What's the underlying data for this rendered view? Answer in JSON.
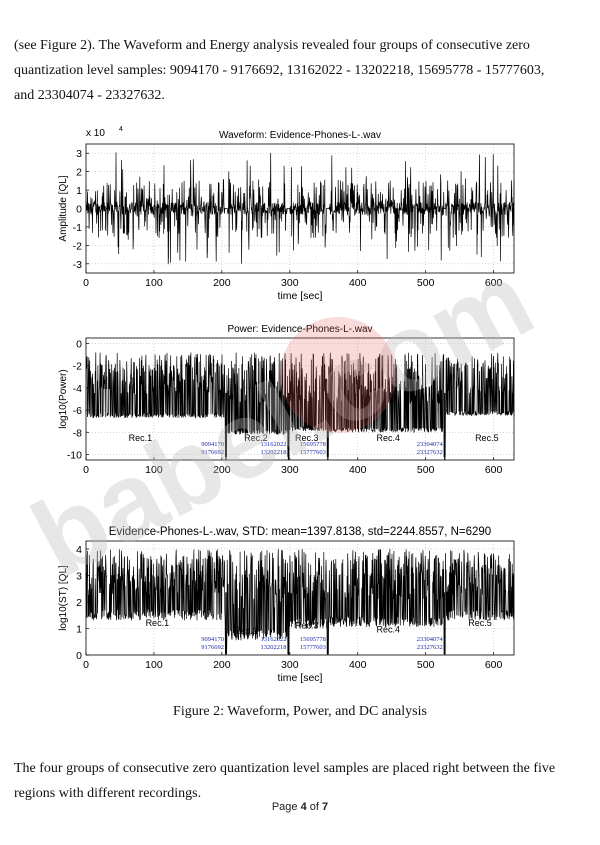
{
  "paragraph1": {
    "line1": "(see Figure 2). The Waveform and Energy analysis revealed four groups of consecutive zero",
    "line2": "quantization level samples: 9094170 - 9176692, 13162022 - 13202218, 15695778 - 15777603,",
    "line3": "and 23304074 - 23327632."
  },
  "figure": {
    "caption": "Figure 2: Waveform, Power, and DC analysis"
  },
  "paragraph2": {
    "line1": "The four groups of consecutive zero quantization level samples are placed right between the five",
    "line2": "regions with different recordings."
  },
  "footer": {
    "prefix": "Page ",
    "current": "4",
    "middle": " of ",
    "total": "7"
  },
  "watermark": {
    "text": "babel.com",
    "color": "#b9b9b9",
    "accent": "#e35b5b"
  },
  "chart_data": [
    {
      "type": "line",
      "title": "Waveform: Evidence-Phones-L-.wav",
      "xlabel": "time [sec]",
      "ylabel": "Amplitude [QL]",
      "y_multiplier": "x 10",
      "y_exponent": "4",
      "xlim": [
        0,
        630
      ],
      "ylim": [
        -3.5,
        3.5
      ],
      "xticks": [
        0,
        100,
        200,
        300,
        400,
        500,
        600
      ],
      "yticks": [
        -3,
        -2,
        -1,
        0,
        1,
        2,
        3
      ],
      "grid": true,
      "line_color": "#000000",
      "series": [
        {
          "x": [
            0,
            630
          ],
          "y_envelope": [
            -3.3,
            3.3
          ]
        }
      ]
    },
    {
      "type": "line",
      "title": "Power: Evidence-Phones-L-.wav",
      "xlabel": "",
      "ylabel": "log10(Power)",
      "xlim": [
        0,
        630
      ],
      "ylim": [
        -10.5,
        0.5
      ],
      "xticks": [
        0,
        100,
        200,
        300,
        400,
        500,
        600
      ],
      "yticks": [
        -10,
        -8,
        -6,
        -4,
        -2,
        0
      ],
      "grid": true,
      "line_color": "#000000",
      "regions": [
        "Rec.1",
        "Rec.2",
        "Rec.3",
        "Rec.4",
        "Rec.5"
      ],
      "region_label_x": [
        80,
        250,
        325,
        445,
        590
      ],
      "region_label_y": -8.8,
      "boundaries": [
        {
          "time": 206,
          "start": "9094170",
          "end": "9176692"
        },
        {
          "time": 298,
          "start": "13162022",
          "end": "13202218"
        },
        {
          "time": 356,
          "start": "15695778",
          "end": "15777603"
        },
        {
          "time": 528,
          "start": "23304074",
          "end": "23327632"
        }
      ],
      "annotation_color": "#1a2aa8",
      "floors": [
        {
          "from": 0,
          "to": 206,
          "value": -6.7
        },
        {
          "from": 206,
          "to": 298,
          "value": -8.2
        },
        {
          "from": 298,
          "to": 356,
          "value": -7.9
        },
        {
          "from": 356,
          "to": 528,
          "value": -8.0
        },
        {
          "from": 528,
          "to": 630,
          "value": -6.5
        }
      ]
    },
    {
      "type": "line",
      "title": "Evidence-Phones-L-.wav, STD: mean=1397.8138, std=2244.8557, N=6290",
      "xlabel": "time [sec]",
      "ylabel": "log10(ST) [QL]",
      "xlim": [
        0,
        630
      ],
      "ylim": [
        0,
        4.3
      ],
      "xticks": [
        0,
        100,
        200,
        300,
        400,
        500,
        600
      ],
      "yticks": [
        0,
        1,
        2,
        3,
        4
      ],
      "grid": true,
      "line_color": "#000000",
      "regions": [
        "Rec.1",
        "Rec.2",
        "Rec.3",
        "Rec.4",
        "Rec.5"
      ],
      "region_label_x": [
        105,
        235,
        325,
        445,
        580
      ],
      "region_label_y": [
        1.1,
        0.8,
        1.0,
        0.85,
        1.1
      ],
      "boundaries": [
        {
          "time": 206,
          "start": "9094170",
          "end": "9176692"
        },
        {
          "time": 298,
          "start": "13162022",
          "end": "13202218"
        },
        {
          "time": 356,
          "start": "15695778",
          "end": "15777603"
        },
        {
          "time": 528,
          "start": "23304074",
          "end": "23327632"
        }
      ],
      "annotation_color": "#1a2aa8",
      "floors": [
        {
          "from": 0,
          "to": 206,
          "value": 1.3
        },
        {
          "from": 206,
          "to": 298,
          "value": 0.55
        },
        {
          "from": 298,
          "to": 356,
          "value": 1.0
        },
        {
          "from": 356,
          "to": 528,
          "value": 1.05
        },
        {
          "from": 528,
          "to": 630,
          "value": 1.3
        }
      ]
    }
  ]
}
